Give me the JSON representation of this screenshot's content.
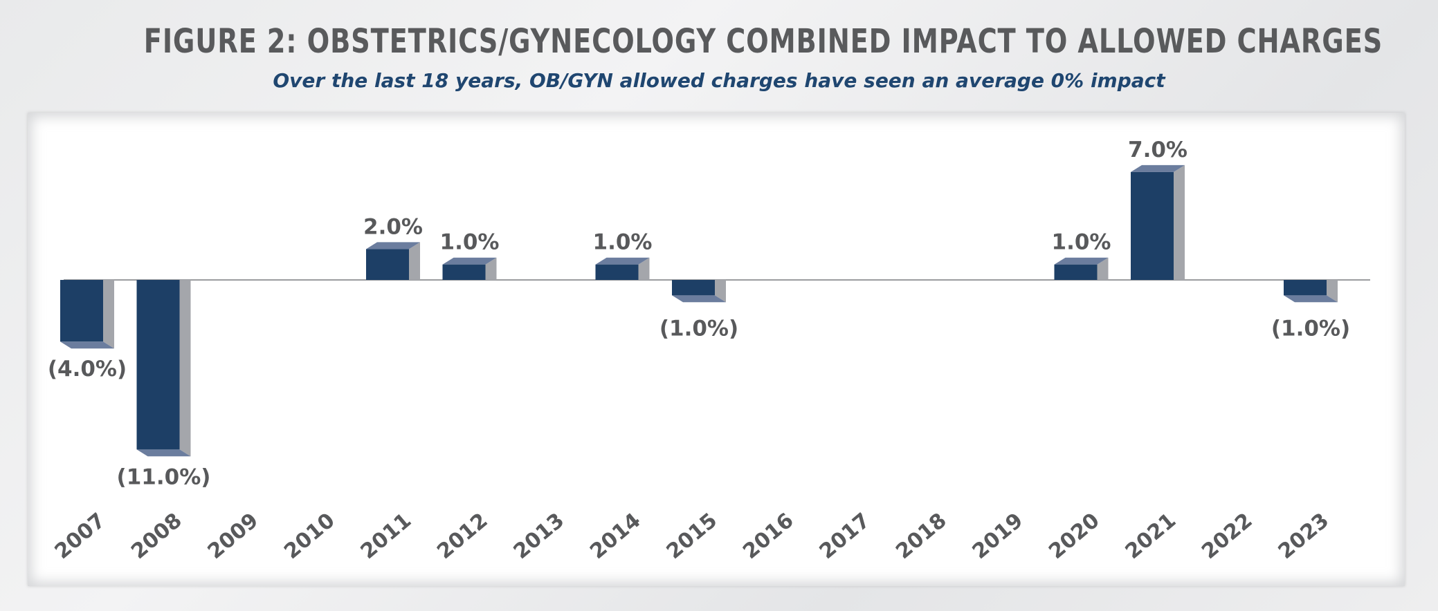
{
  "chart_data": {
    "type": "bar",
    "title": "FIGURE 2: OBSTETRICS/GYNECOLOGY COMBINED IMPACT TO ALLOWED CHARGES",
    "subtitle": "Over the last 18 years, OB/GYN allowed charges have seen an average 0% impact",
    "categories": [
      "2007",
      "2008",
      "2009",
      "2010",
      "2011",
      "2012",
      "2013",
      "2014",
      "2015",
      "2016",
      "2017",
      "2018",
      "2019",
      "2020",
      "2021",
      "2022",
      "2023"
    ],
    "values": [
      -4.0,
      -11.0,
      0,
      0,
      2.0,
      1.0,
      0,
      1.0,
      -1.0,
      0,
      0,
      0,
      0,
      1.0,
      7.0,
      0,
      -1.0
    ],
    "data_labels": [
      "(4.0%)",
      "(11.0%)",
      "",
      "",
      "2.0%",
      "1.0%",
      "",
      "1.0%",
      "(1.0%)",
      "",
      "",
      "",
      "",
      "1.0%",
      "7.0%",
      "",
      "(1.0%)"
    ],
    "xlabel": "",
    "ylabel": "",
    "ylim": [
      -12,
      8
    ],
    "grid": false,
    "legend": "none",
    "colors": {
      "bar_front": "#1d3f66",
      "bar_top": "#6b7d9e",
      "bar_side": "#a4a6ab",
      "axis": "#9a9b9e"
    }
  }
}
